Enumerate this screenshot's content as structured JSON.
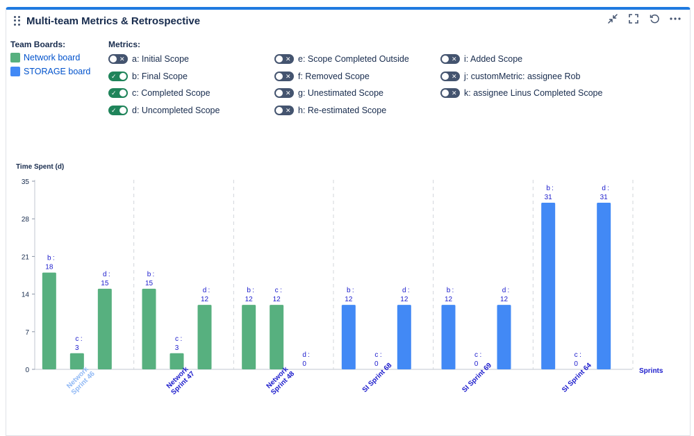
{
  "title": "Multi-team Metrics & Retrospective",
  "toolbar": {
    "icons": [
      "minimize-icon",
      "fullscreen-icon",
      "refresh-icon",
      "more-icon"
    ]
  },
  "team_boards": {
    "label": "Team Boards:",
    "items": [
      {
        "label": "Network board",
        "color": "#57b07f"
      },
      {
        "label": "STORAGE board",
        "color": "#4289f5"
      }
    ]
  },
  "metrics": {
    "label": "Metrics:",
    "items": [
      {
        "label": "a: Initial Scope",
        "on": false
      },
      {
        "label": "e: Scope Completed Outside",
        "on": false
      },
      {
        "label": "i: Added Scope",
        "on": false
      },
      {
        "label": "b: Final Scope",
        "on": true
      },
      {
        "label": "f: Removed Scope",
        "on": false
      },
      {
        "label": "j: customMetric: assignee Rob",
        "on": false
      },
      {
        "label": "c: Completed Scope",
        "on": true
      },
      {
        "label": "g: Unestimated Scope",
        "on": false
      },
      {
        "label": "k: assignee Linus Completed Scope",
        "on": false
      },
      {
        "label": "d: Uncompleted Scope",
        "on": true
      },
      {
        "label": "h: Re-estimated Scope",
        "on": false
      }
    ]
  },
  "chart_data": {
    "type": "bar",
    "ylabel": "Time Spent (d)",
    "xlabel": "Sprints",
    "ylim": [
      0,
      35
    ],
    "yticks": [
      0,
      7,
      14,
      21,
      28,
      35
    ],
    "grid": "vertical dashed separators",
    "categories": [
      {
        "label": [
          "Network",
          "Sprint 46"
        ],
        "board": "Network board",
        "highlight": true
      },
      {
        "label": [
          "Network",
          "Sprint 47"
        ],
        "board": "Network board",
        "highlight": false
      },
      {
        "label": [
          "Network",
          "Sprint 48"
        ],
        "board": "Network board",
        "highlight": false
      },
      {
        "label": [
          "SI Sprint 68"
        ],
        "board": "STORAGE board",
        "highlight": false
      },
      {
        "label": [
          "SI Sprint 69"
        ],
        "board": "STORAGE board",
        "highlight": false
      },
      {
        "label": [
          "SI Sprint 64"
        ],
        "board": "STORAGE board",
        "highlight": false
      }
    ],
    "series": [
      {
        "name": "b",
        "values": [
          18,
          15,
          12,
          12,
          12,
          31
        ]
      },
      {
        "name": "c",
        "values": [
          3,
          3,
          12,
          0,
          0,
          0
        ]
      },
      {
        "name": "d",
        "values": [
          15,
          12,
          0,
          12,
          12,
          31
        ]
      }
    ],
    "board_colors": {
      "Network board": "#57b07f",
      "STORAGE board": "#4289f5"
    },
    "label_color": "#1a1acc",
    "highlight_label_color": "#8fb8f5"
  }
}
